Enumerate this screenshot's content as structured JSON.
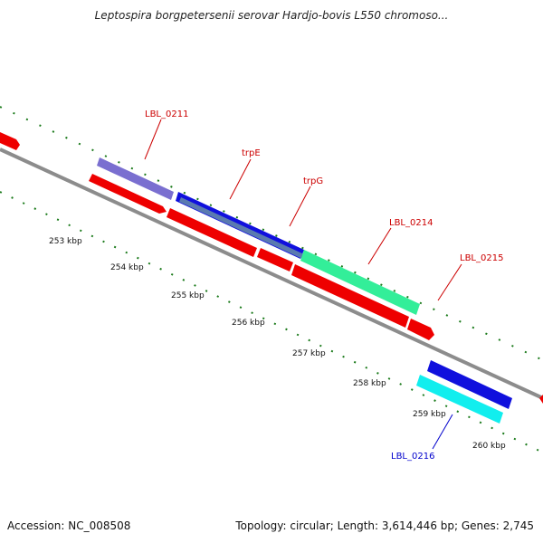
{
  "title": "Leptospira borgpetersenii serovar Hardjo-bovis L550 chromoso...",
  "footer": {
    "accession": "Accession: NC_008508",
    "summary": "Topology: circular; Length: 3,614,446 bp; Genes: 2,745"
  },
  "kbp_labels": [
    "253 kbp",
    "254 kbp",
    "255 kbp",
    "256 kbp",
    "257 kbp",
    "258 kbp",
    "259 kbp",
    "260 kbp"
  ],
  "gene_labels": [
    {
      "text": "LBL_0211",
      "color": "#cc0000"
    },
    {
      "text": "trpE",
      "color": "#cc0000"
    },
    {
      "text": "trpG",
      "color": "#cc0000"
    },
    {
      "text": "LBL_0214",
      "color": "#cc0000"
    },
    {
      "text": "LBL_0215",
      "color": "#cc0000"
    },
    {
      "text": "LBL_0216",
      "color": "#0000cc"
    }
  ],
  "colors": {
    "backbone": "#8c8c8c",
    "tick": "#1a7a1a",
    "cds_red": "#ee0000",
    "gene_blue": "#1010dd",
    "gene_slate": "#7a6fd0",
    "gene_green": "#33ee99",
    "gene_cyan": "#11eeee"
  }
}
